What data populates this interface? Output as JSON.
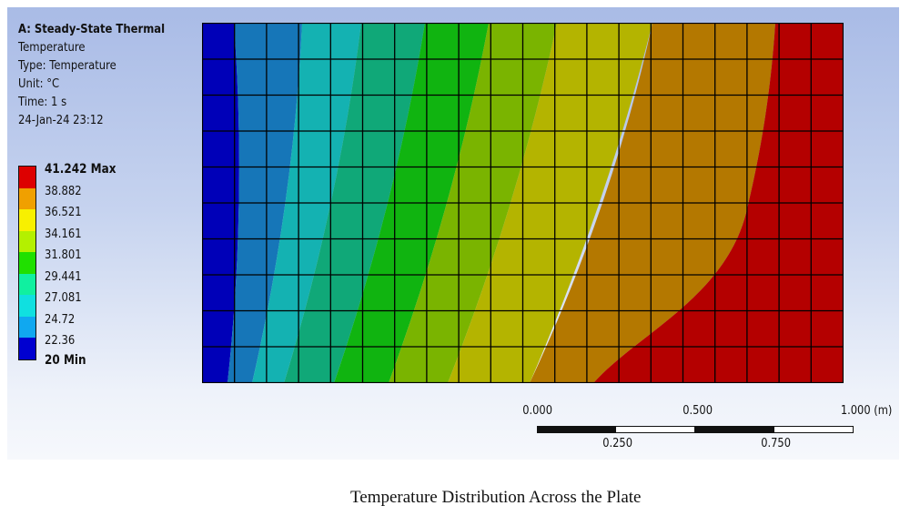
{
  "analysis": {
    "title": "A: Steady-State Thermal",
    "result": "Temperature",
    "type": "Type: Temperature",
    "unit": "Unit: °C",
    "time": "Time: 1 s",
    "date": "24-Jan-24 23:12"
  },
  "legend": {
    "max_label": "41.242 Max",
    "min_label": "20 Min",
    "values": [
      "38.882",
      "36.521",
      "34.161",
      "31.801",
      "29.441",
      "27.081",
      "24.72",
      "22.36"
    ],
    "colors": [
      "#dd0000",
      "#f0a000",
      "#f8f000",
      "#b4f000",
      "#20e000",
      "#10f0a0",
      "#10e0e0",
      "#10a8f0",
      "#0000d0"
    ]
  },
  "contour": {
    "band_colors": [
      "#0000b8",
      "#1676b8",
      "#14b2b2",
      "#10a878",
      "#10b410",
      "#7ab400",
      "#b4b400",
      "#b47800",
      "#b40000"
    ],
    "mesh_cols": 20,
    "mesh_rows": 10
  },
  "scale_bar": {
    "labels_top": [
      "0.000",
      "0.500",
      "1.000 (m)"
    ],
    "labels_bottom": [
      "0.250",
      "0.750"
    ]
  },
  "caption": "Temperature Distribution Across the Plate"
}
